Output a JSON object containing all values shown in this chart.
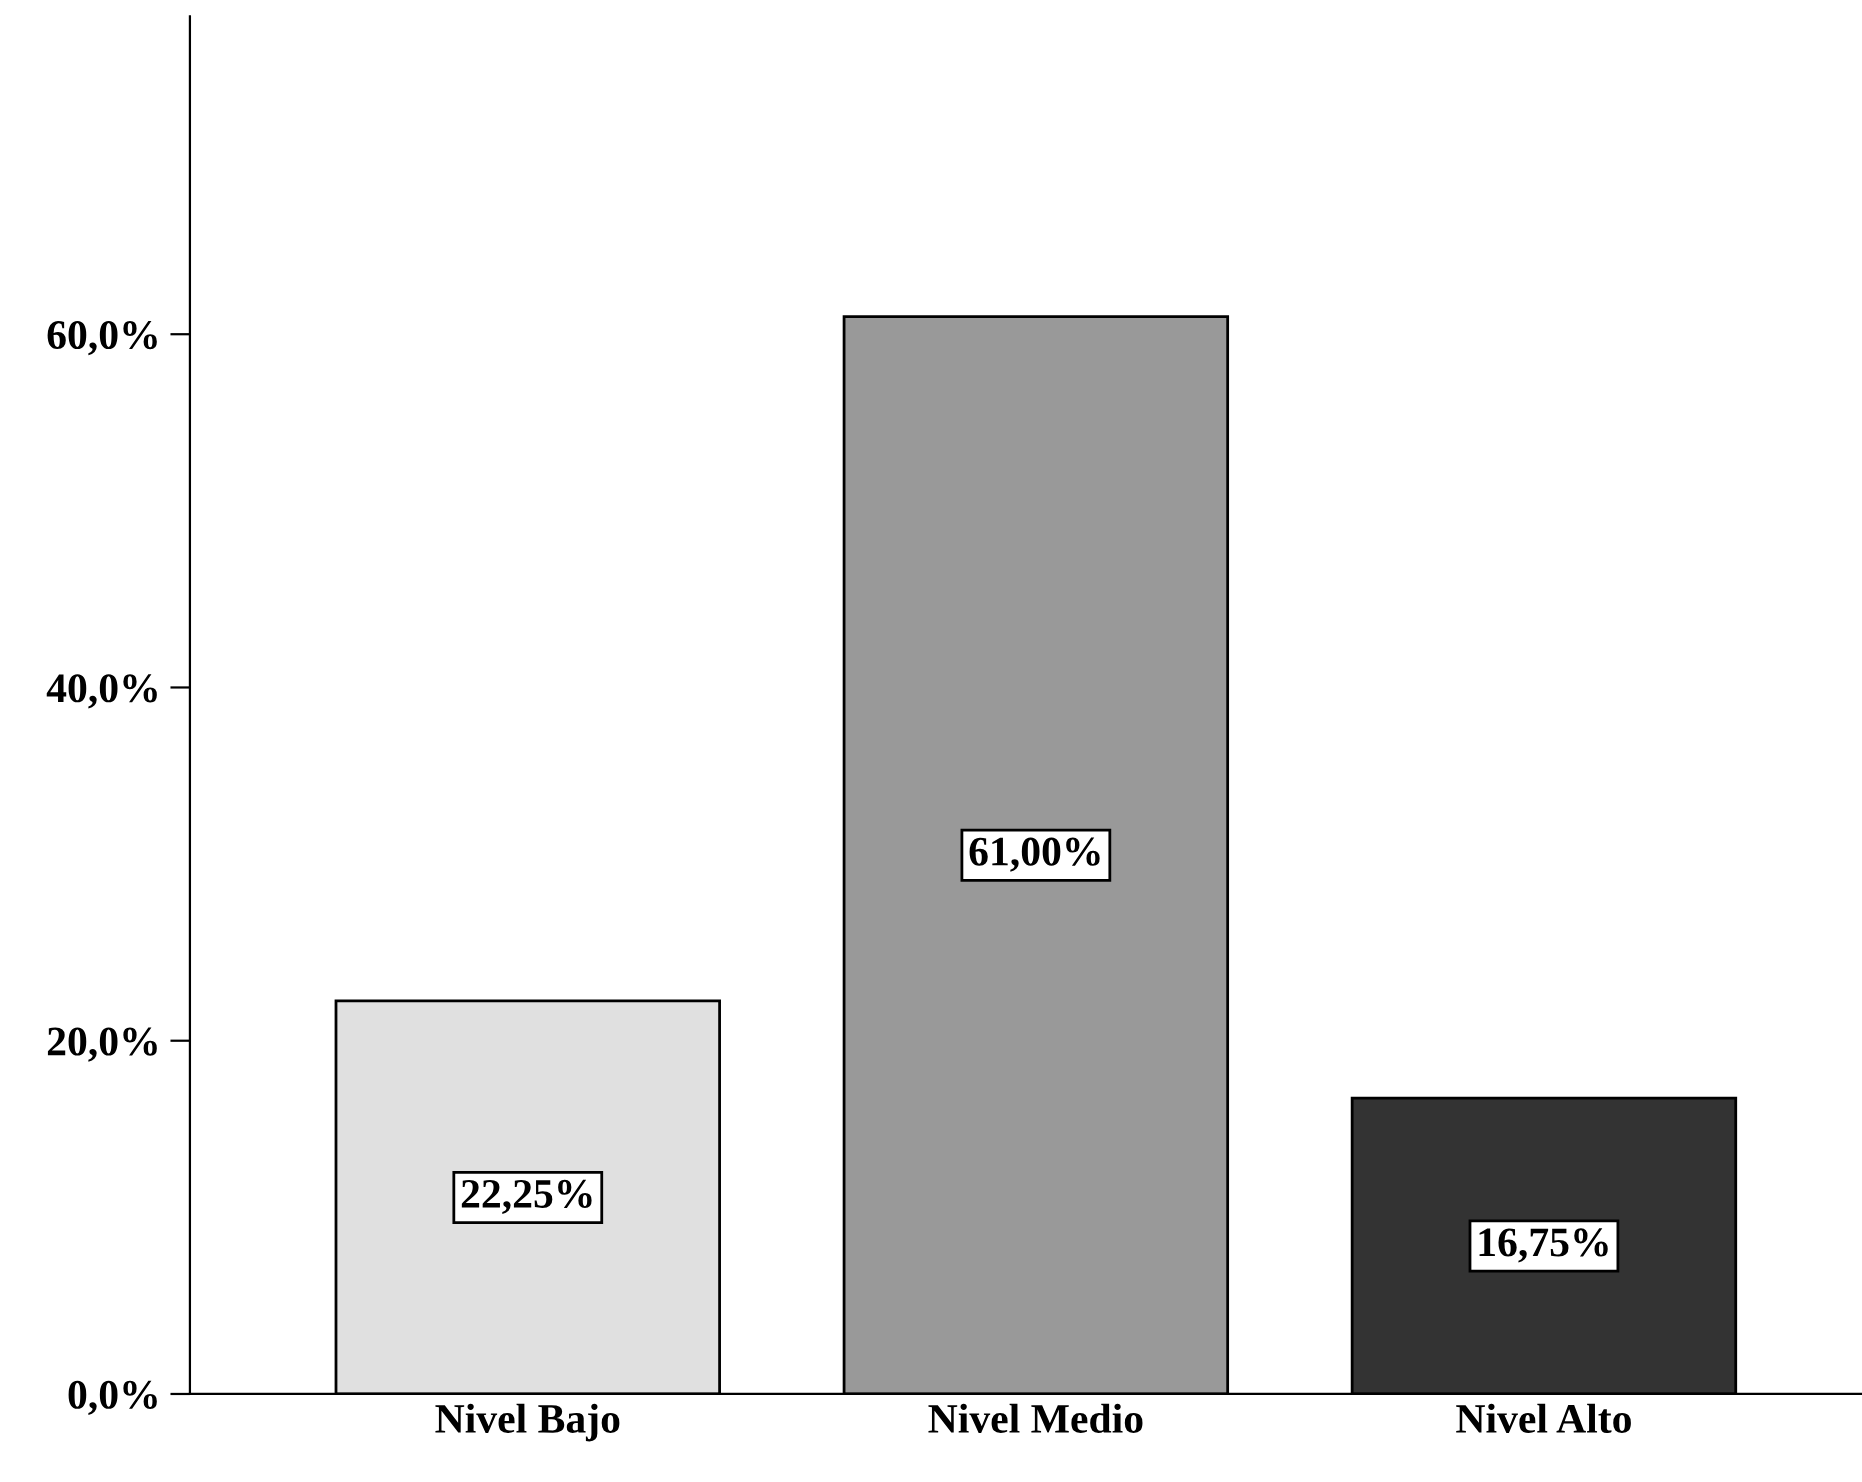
{
  "chart_data": {
    "type": "bar",
    "categories": [
      "Nivel Bajo",
      "Nivel Medio",
      "Nivel Alto"
    ],
    "values": [
      22.25,
      61.0,
      16.75
    ],
    "colors": [
      "#e0e0e0",
      "#999999",
      "#333333"
    ],
    "value_labels": [
      "22,25%",
      "61,00%",
      "16,75%"
    ],
    "ylim": [
      0,
      78
    ],
    "yticks": [
      {
        "value": 0,
        "label": "0,0%"
      },
      {
        "value": 20,
        "label": "20,0%"
      },
      {
        "value": 40,
        "label": "40,0%"
      },
      {
        "value": 60,
        "label": "60,0%"
      }
    ],
    "grid": false
  }
}
